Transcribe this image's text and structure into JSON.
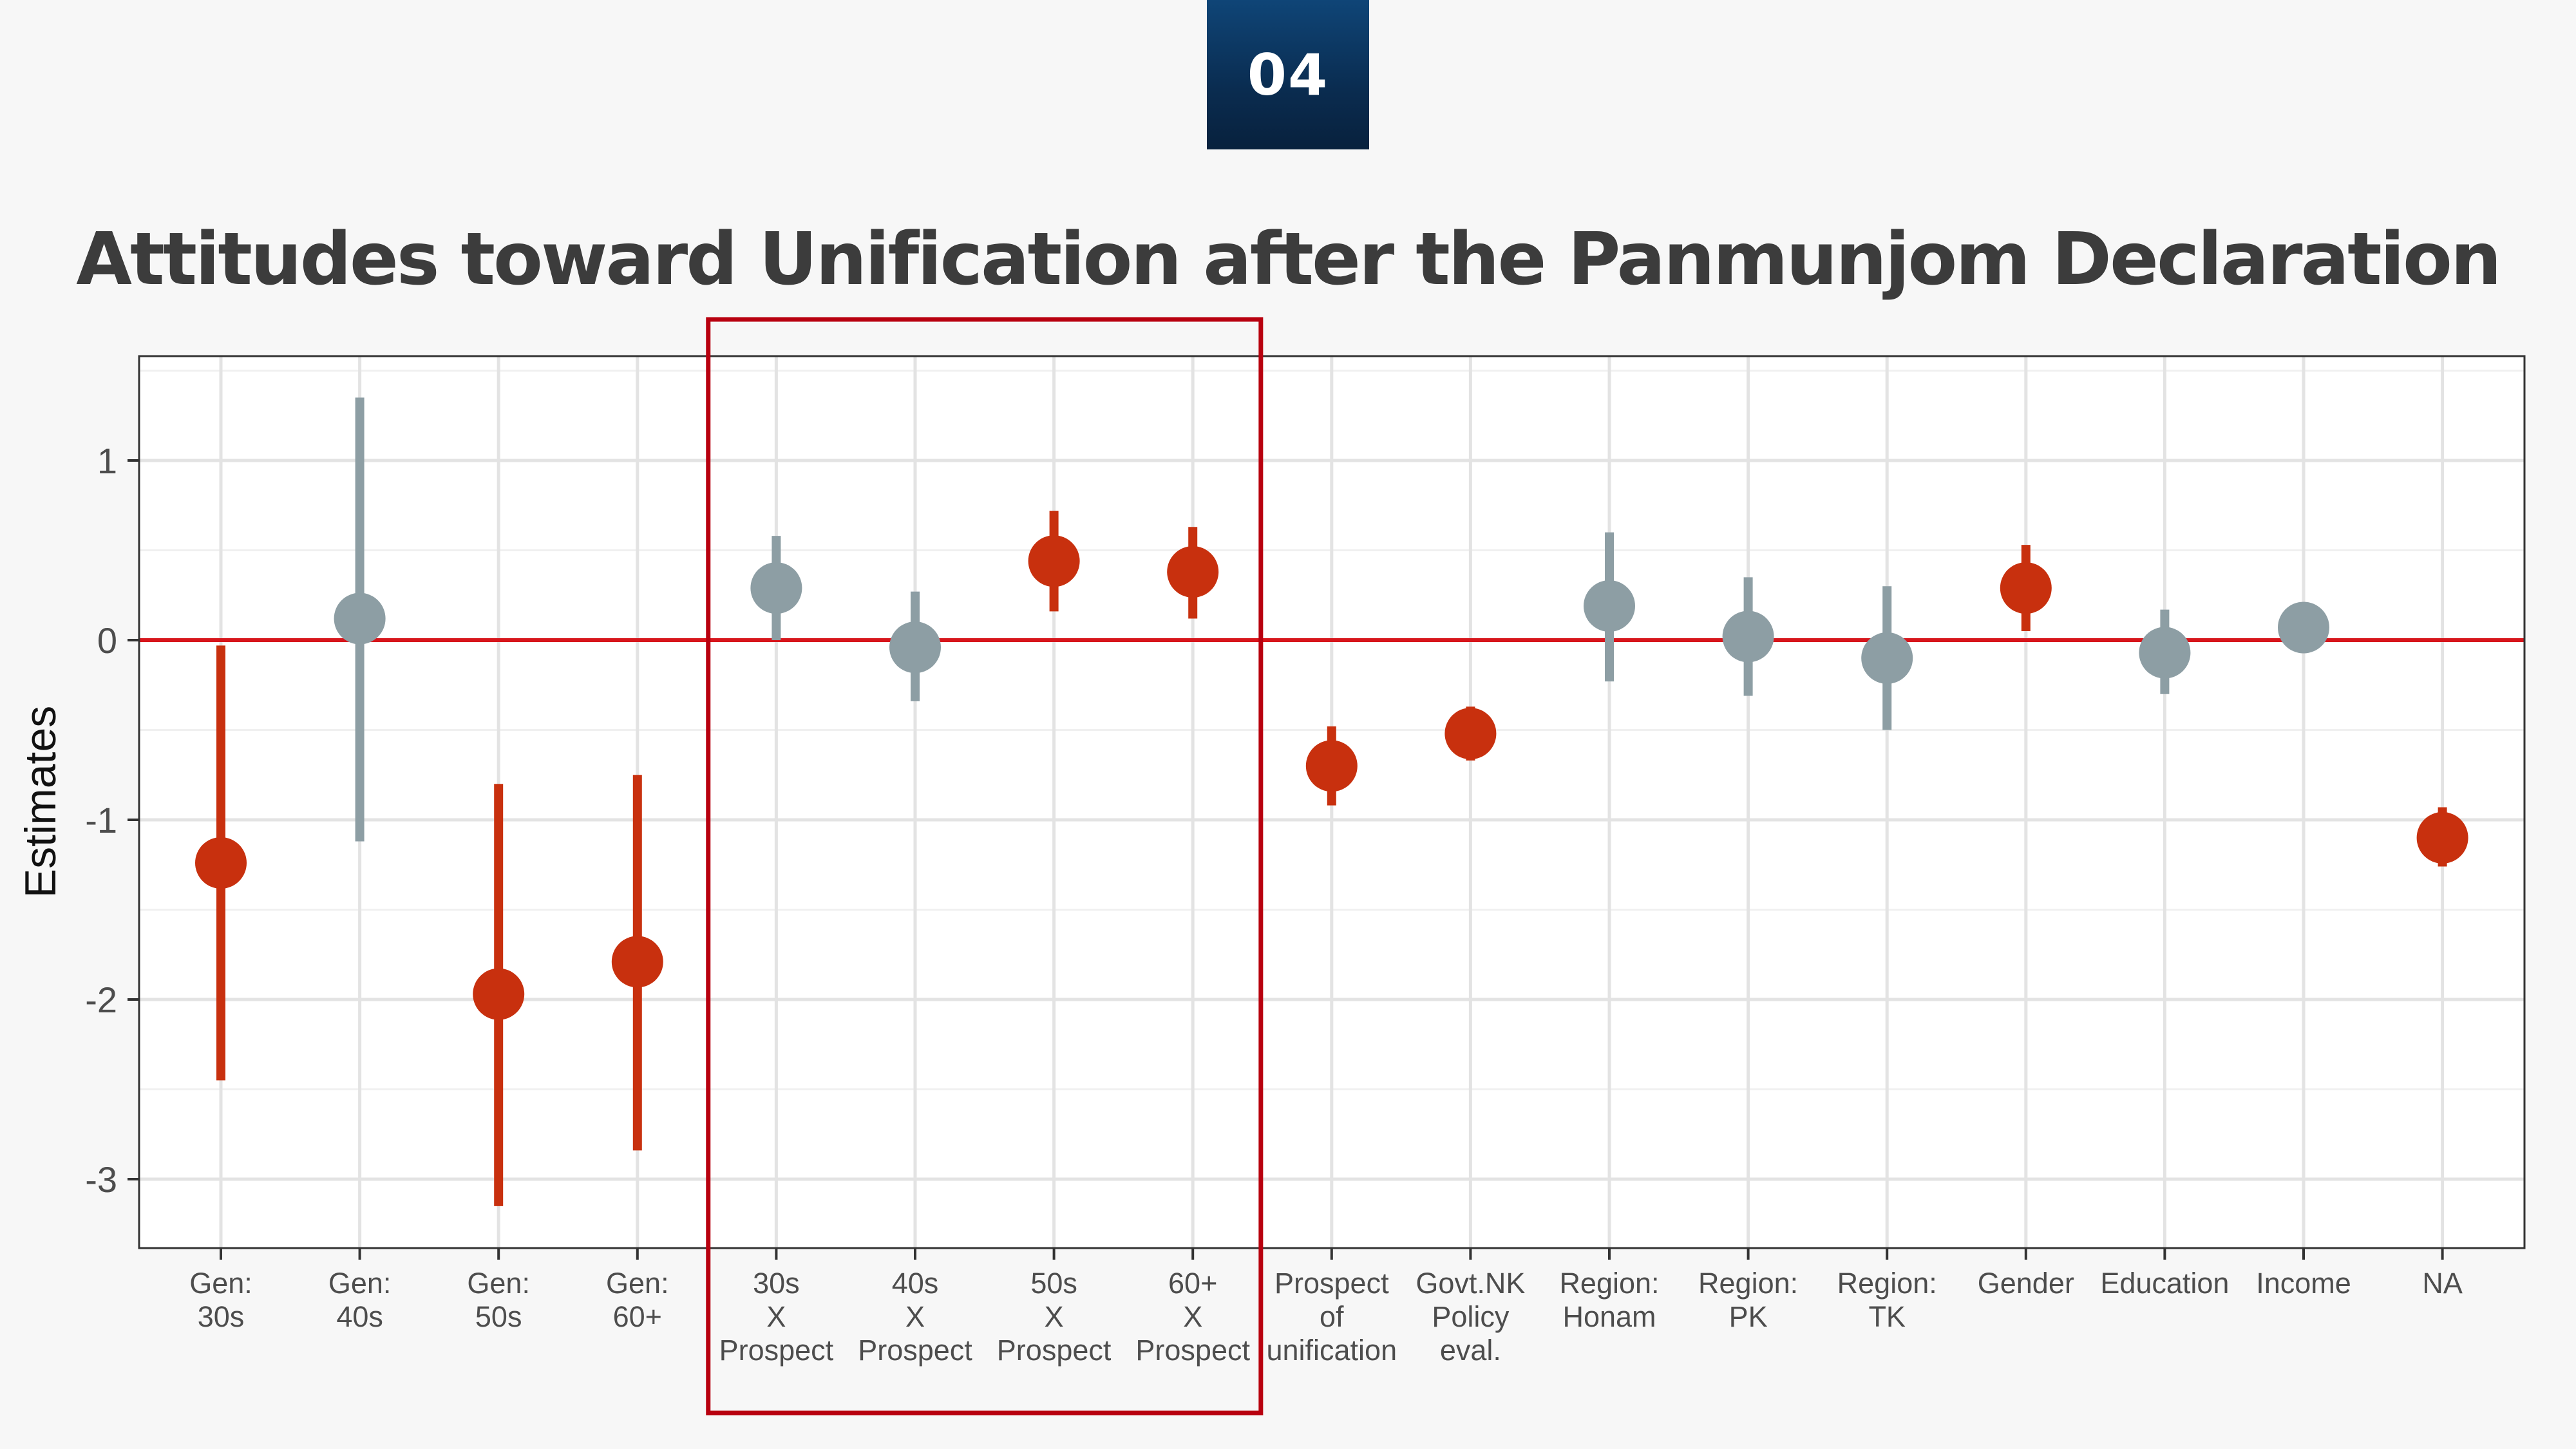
{
  "badge": {
    "label": "04"
  },
  "title": "Attitudes toward Unification after the Panmunjom Declaration",
  "colors": {
    "significant": "#c8300e",
    "not_significant": "#8d9ea4",
    "reference_line": "#d7161c",
    "highlight_box": "#b8000f",
    "grid": "#e3e3e3"
  },
  "chart_data": {
    "type": "scatter",
    "subtype": "point-range (coefficient plot)",
    "ylabel": "Estimates",
    "xlabel": "",
    "ylim": [
      -3.4,
      1.55
    ],
    "yticks": [
      1,
      0,
      -1,
      -2,
      -3
    ],
    "ytick_labels": [
      "1",
      "0",
      "-1",
      "-2",
      "-3"
    ],
    "reference_line_y": 0,
    "grid": true,
    "highlight_box": {
      "covers": [
        "30s X Prospect",
        "40s X Prospect",
        "50s X Prospect",
        "60+ X Prospect"
      ]
    },
    "points": [
      {
        "label": [
          "Gen:",
          "30s"
        ],
        "estimate": -1.24,
        "lower": -2.45,
        "upper": -0.03,
        "significant": true
      },
      {
        "label": [
          "Gen:",
          "40s"
        ],
        "estimate": 0.12,
        "lower": -1.12,
        "upper": 1.35,
        "significant": false
      },
      {
        "label": [
          "Gen:",
          "50s"
        ],
        "estimate": -1.97,
        "lower": -3.15,
        "upper": -0.8,
        "significant": true
      },
      {
        "label": [
          "Gen:",
          "60+"
        ],
        "estimate": -1.79,
        "lower": -2.84,
        "upper": -0.75,
        "significant": true
      },
      {
        "label": [
          "30s",
          "X",
          "Prospect"
        ],
        "estimate": 0.29,
        "lower": 0.0,
        "upper": 0.58,
        "significant": false
      },
      {
        "label": [
          "40s",
          "X",
          "Prospect"
        ],
        "estimate": -0.04,
        "lower": -0.34,
        "upper": 0.27,
        "significant": false
      },
      {
        "label": [
          "50s",
          "X",
          "Prospect"
        ],
        "estimate": 0.44,
        "lower": 0.16,
        "upper": 0.72,
        "significant": true
      },
      {
        "label": [
          "60+",
          "X",
          "Prospect"
        ],
        "estimate": 0.38,
        "lower": 0.12,
        "upper": 0.63,
        "significant": true
      },
      {
        "label": [
          "Prospect",
          "of",
          "unification"
        ],
        "estimate": -0.7,
        "lower": -0.92,
        "upper": -0.48,
        "significant": true
      },
      {
        "label": [
          "Govt.NK",
          "Policy",
          "eval."
        ],
        "estimate": -0.52,
        "lower": -0.67,
        "upper": -0.37,
        "significant": true
      },
      {
        "label": [
          "Region:",
          "Honam"
        ],
        "estimate": 0.19,
        "lower": -0.23,
        "upper": 0.6,
        "significant": false
      },
      {
        "label": [
          "Region:",
          "PK"
        ],
        "estimate": 0.02,
        "lower": -0.31,
        "upper": 0.35,
        "significant": false
      },
      {
        "label": [
          "Region:",
          "TK"
        ],
        "estimate": -0.1,
        "lower": -0.5,
        "upper": 0.3,
        "significant": false
      },
      {
        "label": [
          "Gender"
        ],
        "estimate": 0.29,
        "lower": 0.05,
        "upper": 0.53,
        "significant": true
      },
      {
        "label": [
          "Education"
        ],
        "estimate": -0.07,
        "lower": -0.3,
        "upper": 0.17,
        "significant": false
      },
      {
        "label": [
          "Income"
        ],
        "estimate": 0.07,
        "lower": 0.04,
        "upper": 0.1,
        "significant": false
      },
      {
        "label": [
          "NA"
        ],
        "estimate": -1.1,
        "lower": -1.26,
        "upper": -0.93,
        "significant": true
      }
    ]
  }
}
